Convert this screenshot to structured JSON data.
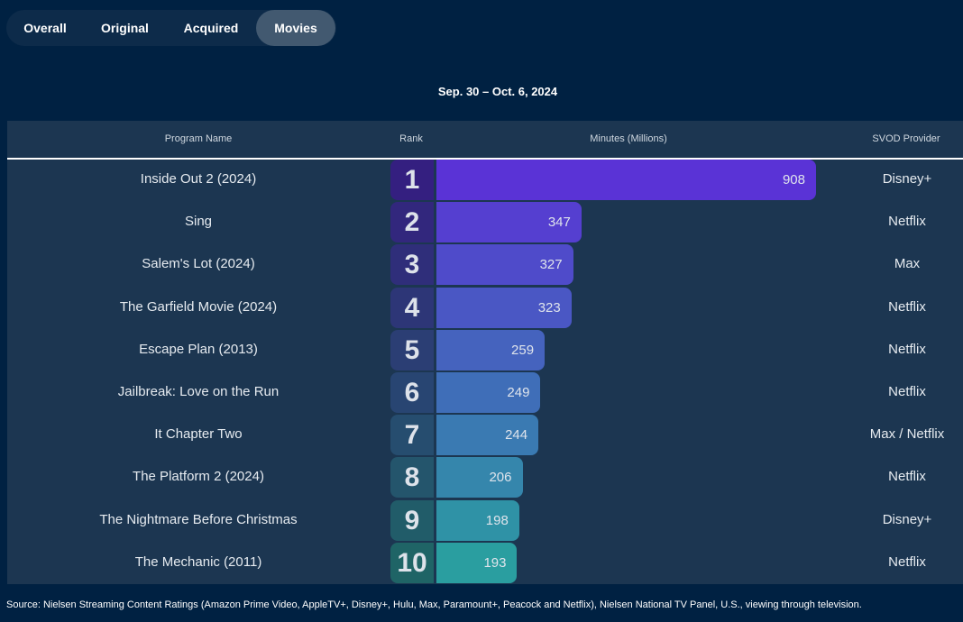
{
  "tabs": [
    {
      "label": "Overall",
      "active": false
    },
    {
      "label": "Original",
      "active": false
    },
    {
      "label": "Acquired",
      "active": false
    },
    {
      "label": "Movies",
      "active": true
    }
  ],
  "date_range": "Sep. 30 – Oct. 6, 2024",
  "headers": {
    "program": "Program Name",
    "rank": "Rank",
    "minutes": "Minutes (Millions)",
    "provider": "SVOD Provider"
  },
  "colors": {
    "bar_start": "#5a33d6",
    "bar_end": "#2a9ea0",
    "rank_start": "#341f80",
    "rank_end": "#1f6466"
  },
  "rows": [
    {
      "rank": "1",
      "name": "Inside Out 2 (2024)",
      "minutes": 908,
      "provider": "Disney+"
    },
    {
      "rank": "2",
      "name": "Sing",
      "minutes": 347,
      "provider": "Netflix"
    },
    {
      "rank": "3",
      "name": "Salem's Lot (2024)",
      "minutes": 327,
      "provider": "Max"
    },
    {
      "rank": "4",
      "name": "The Garfield Movie (2024)",
      "minutes": 323,
      "provider": "Netflix"
    },
    {
      "rank": "5",
      "name": "Escape Plan (2013)",
      "minutes": 259,
      "provider": "Netflix"
    },
    {
      "rank": "6",
      "name": "Jailbreak: Love on the Run",
      "minutes": 249,
      "provider": "Netflix"
    },
    {
      "rank": "7",
      "name": "It Chapter Two",
      "minutes": 244,
      "provider": "Max / Netflix"
    },
    {
      "rank": "8",
      "name": "The Platform 2 (2024)",
      "minutes": 206,
      "provider": "Netflix"
    },
    {
      "rank": "9",
      "name": "The Nightmare Before Christmas",
      "minutes": 198,
      "provider": "Disney+"
    },
    {
      "rank": "10",
      "name": "The Mechanic (2011)",
      "minutes": 193,
      "provider": "Netflix"
    }
  ],
  "source": "Source: Nielsen Streaming Content Ratings (Amazon Prime Video, AppleTV+, Disney+, Hulu, Max, Paramount+, Peacock and Netflix), Nielsen National TV Panel, U.S., viewing through television."
}
